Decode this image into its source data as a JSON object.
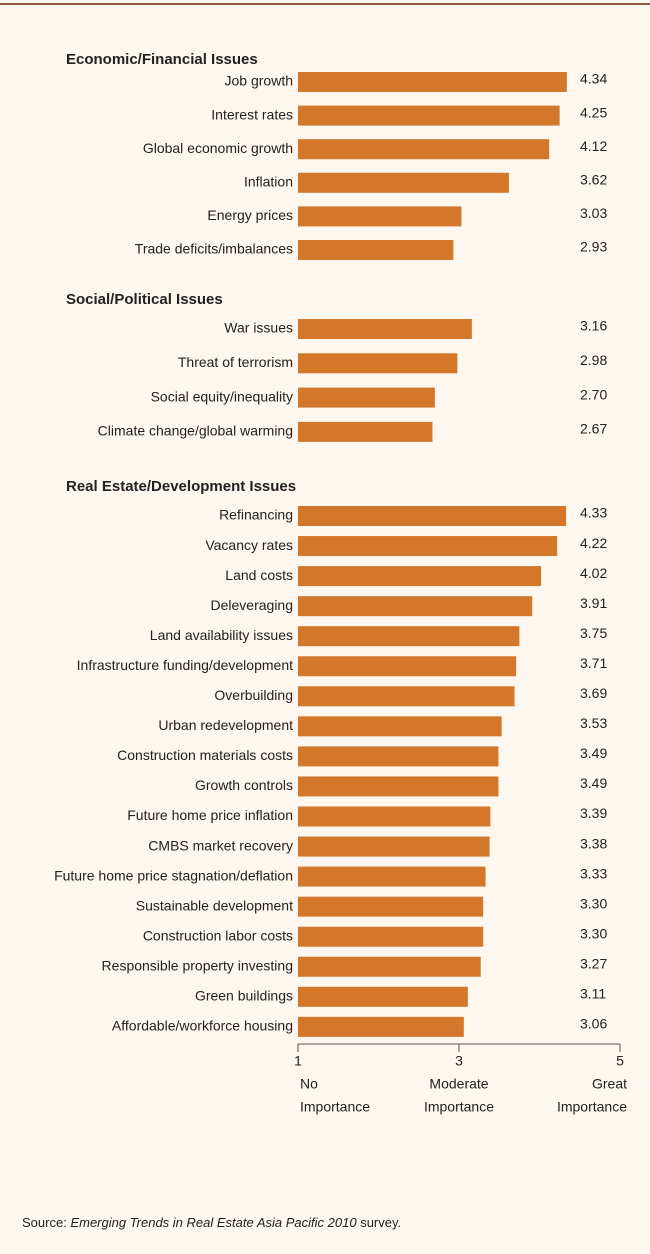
{
  "chart_data": {
    "type": "bar",
    "orientation": "horizontal",
    "color": "#d3772b",
    "xlim": [
      1,
      5
    ],
    "xticks": [
      1,
      3,
      5
    ],
    "xtick_descriptions": [
      [
        "No",
        "Importance"
      ],
      [
        "Moderate",
        "Importance"
      ],
      [
        "Great",
        "Importance"
      ]
    ],
    "groups": [
      {
        "title": "Economic/Financial Issues",
        "categories": [
          "Job growth",
          "Interest rates",
          "Global economic growth",
          "Inflation",
          "Energy prices",
          "Trade deficits/imbalances"
        ],
        "values": [
          4.34,
          4.25,
          4.12,
          3.62,
          3.03,
          2.93
        ],
        "value_labels": [
          "4.34",
          "4.25",
          "4.12",
          "3.62",
          "3.03",
          "2.93"
        ]
      },
      {
        "title": "Social/Political Issues",
        "categories": [
          "War issues",
          "Threat of terrorism",
          "Social equity/inequality",
          "Climate change/global warming"
        ],
        "values": [
          3.16,
          2.98,
          2.7,
          2.67
        ],
        "value_labels": [
          "3.16",
          "2.98",
          "2.70",
          "2.67"
        ]
      },
      {
        "title": "Real Estate/Development Issues",
        "categories": [
          "Refinancing",
          "Vacancy rates",
          "Land costs",
          "Deleveraging",
          "Land availability issues",
          "Infrastructure funding/development",
          "Overbuilding",
          "Urban redevelopment",
          "Construction materials costs",
          "Growth controls",
          "Future home price inflation",
          "CMBS market recovery",
          "Future home price stagnation/deflation",
          "Sustainable development",
          "Construction labor costs",
          "Responsible property investing",
          "Green buildings",
          "Affordable/workforce housing"
        ],
        "values": [
          4.33,
          4.22,
          4.02,
          3.91,
          3.75,
          3.71,
          3.69,
          3.53,
          3.49,
          3.49,
          3.39,
          3.38,
          3.33,
          3.3,
          3.3,
          3.27,
          3.11,
          3.06
        ],
        "value_labels": [
          "4.33",
          "4.22",
          "4.02",
          "3.91",
          "3.75",
          "3.71",
          "3.69",
          "3.53",
          "3.49",
          "3.49",
          "3.39",
          "3.38",
          "3.33",
          "3.30",
          "3.30",
          "3.27",
          "3.11",
          "3.06"
        ]
      }
    ],
    "source": {
      "prefix": "Source:",
      "title": "Emerging Trends in Real Estate Asia Pacific 2010",
      "suffix": "survey."
    }
  }
}
